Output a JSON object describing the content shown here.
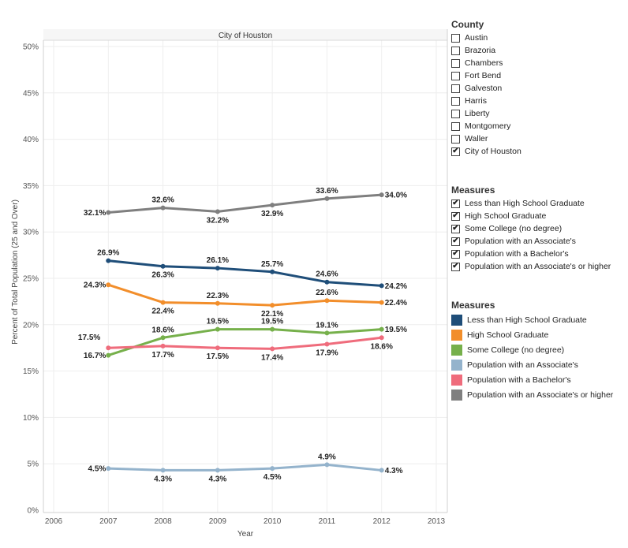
{
  "chart_data": {
    "type": "line",
    "title": "City of Houston",
    "xlabel": "Year",
    "ylabel": "Percent of Total Population (25 and Over)",
    "x_ticks": [
      "2006",
      "2007",
      "2008",
      "2009",
      "2010",
      "2011",
      "2012",
      "2013"
    ],
    "xlim": [
      2006,
      2013
    ],
    "y_ticks": [
      "0%",
      "5%",
      "10%",
      "15%",
      "20%",
      "25%",
      "30%",
      "35%",
      "40%",
      "45%",
      "50%"
    ],
    "ylim": [
      0,
      50
    ],
    "x": [
      2007,
      2008,
      2009,
      2010,
      2011,
      2012
    ],
    "series": [
      {
        "name": "Less than High School Graduate",
        "color": "#1f4e79",
        "values": [
          26.9,
          26.3,
          26.1,
          25.7,
          24.6,
          24.2
        ],
        "labels": [
          "26.9%",
          "26.3%",
          "26.1%",
          "25.7%",
          "24.6%",
          "24.2%"
        ],
        "label_pos": [
          "above",
          "below",
          "above",
          "above",
          "above",
          "right"
        ]
      },
      {
        "name": "High School Graduate",
        "color": "#f28e2b",
        "values": [
          24.3,
          22.4,
          22.3,
          22.1,
          22.6,
          22.4
        ],
        "labels": [
          "24.3%",
          "22.4%",
          "22.3%",
          "22.1%",
          "22.6%",
          "22.4%"
        ],
        "label_pos": [
          "left",
          "below",
          "above",
          "below",
          "above",
          "right"
        ]
      },
      {
        "name": "Some College (no degree)",
        "color": "#76b04b",
        "values": [
          16.7,
          18.6,
          19.5,
          19.5,
          19.1,
          19.5
        ],
        "labels": [
          "16.7%",
          "18.6%",
          "19.5%",
          "19.5%",
          "19.1%",
          "19.5%"
        ],
        "label_pos": [
          "left",
          "above",
          "above",
          "above",
          "above",
          "right"
        ]
      },
      {
        "name": "Population with an Associate's",
        "color": "#94b3cc",
        "values": [
          4.5,
          4.3,
          4.3,
          4.5,
          4.9,
          4.3
        ],
        "labels": [
          "4.5%",
          "4.3%",
          "4.3%",
          "4.5%",
          "4.9%",
          "4.3%"
        ],
        "label_pos": [
          "left",
          "below",
          "below",
          "below",
          "above",
          "right"
        ]
      },
      {
        "name": "Population with a Bachelor's",
        "color": "#ef6c7c",
        "values": [
          17.5,
          17.7,
          17.5,
          17.4,
          17.9,
          18.6
        ],
        "labels": [
          "17.5%",
          "17.7%",
          "17.5%",
          "17.4%",
          "17.9%",
          "18.6%"
        ],
        "label_pos": [
          "above-left",
          "below",
          "below",
          "below",
          "below",
          "below"
        ]
      },
      {
        "name": "Population with an Associate's or higher",
        "color": "#7f7f7f",
        "values": [
          32.1,
          32.6,
          32.2,
          32.9,
          33.6,
          34.0
        ],
        "labels": [
          "32.1%",
          "32.6%",
          "32.2%",
          "32.9%",
          "33.6%",
          "34.0%"
        ],
        "label_pos": [
          "left",
          "above",
          "below",
          "below",
          "above",
          "right"
        ]
      }
    ]
  },
  "county_filter": {
    "title": "County",
    "items": [
      {
        "label": "Austin",
        "checked": false,
        "mark": ""
      },
      {
        "label": "Brazoria",
        "checked": false,
        "mark": ""
      },
      {
        "label": "Chambers",
        "checked": false,
        "mark": ""
      },
      {
        "label": "Fort Bend",
        "checked": false,
        "mark": ""
      },
      {
        "label": "Galveston",
        "checked": false,
        "mark": ""
      },
      {
        "label": "Harris",
        "checked": false,
        "mark": ""
      },
      {
        "label": "Liberty",
        "checked": false,
        "mark": ""
      },
      {
        "label": "Montgomery",
        "checked": false,
        "mark": ""
      },
      {
        "label": "Waller",
        "checked": false,
        "mark": ""
      },
      {
        "label": "City of Houston",
        "checked": true,
        "mark": "✔"
      }
    ]
  },
  "measures_filter": {
    "title": "Measures",
    "items": [
      {
        "label": "Less than High School Graduate",
        "checked": true,
        "mark": "✔"
      },
      {
        "label": "High School Graduate",
        "checked": true,
        "mark": "✔"
      },
      {
        "label": "Some College (no degree)",
        "checked": true,
        "mark": "✔"
      },
      {
        "label": "Population with an Associate's",
        "checked": true,
        "mark": "✔"
      },
      {
        "label": "Population with a Bachelor's",
        "checked": true,
        "mark": "✔"
      },
      {
        "label": "Population with an Associate's or higher",
        "checked": true,
        "mark": "✔"
      }
    ]
  },
  "measures_legend": {
    "title": "Measures",
    "items": [
      {
        "label": "Less than High School Graduate",
        "color": "#1f4e79"
      },
      {
        "label": "High School Graduate",
        "color": "#f28e2b"
      },
      {
        "label": "Some College (no degree)",
        "color": "#76b04b"
      },
      {
        "label": "Population with an Associate's",
        "color": "#94b3cc"
      },
      {
        "label": "Population with a Bachelor's",
        "color": "#ef6c7c"
      },
      {
        "label": "Population with an Associate's or higher",
        "color": "#7f7f7f"
      }
    ]
  }
}
